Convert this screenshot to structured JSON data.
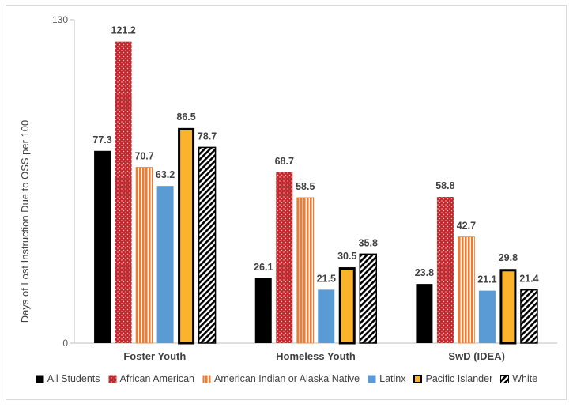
{
  "chart_data": {
    "type": "bar",
    "ylabel": "Days of Lost Instruction Due to OSS per 100",
    "ylim": [
      0,
      130
    ],
    "yticks": [
      "0",
      "130"
    ],
    "categories": [
      "Foster Youth",
      "Homeless Youth",
      "SwD (IDEA)"
    ],
    "series": [
      {
        "name": "All Students",
        "values": [
          77.3,
          26.1,
          23.8
        ],
        "labels": [
          "77.3",
          "26.1",
          "23.8"
        ],
        "color": "#000000",
        "pattern": "solid"
      },
      {
        "name": "African American",
        "values": [
          121.2,
          68.7,
          58.8
        ],
        "labels": [
          "121.2",
          "68.7",
          "58.8"
        ],
        "color": "#c0282d",
        "pattern": "dots"
      },
      {
        "name": "American Indian or Alaska Native",
        "values": [
          70.7,
          58.5,
          42.7
        ],
        "labels": [
          "70.7",
          "58.5",
          "42.7"
        ],
        "color": "#ed7d31",
        "pattern": "vertical-stripes"
      },
      {
        "name": "Latinx",
        "values": [
          63.2,
          21.5,
          21.1
        ],
        "labels": [
          "63.2",
          "21.5",
          "21.1"
        ],
        "color": "#5b9bd5",
        "pattern": "solid"
      },
      {
        "name": "Pacific Islander",
        "values": [
          86.5,
          30.5,
          29.8
        ],
        "labels": [
          "86.5",
          "30.5",
          "29.8"
        ],
        "color": "#fbb32b",
        "pattern": "solid-thick-border"
      },
      {
        "name": "White",
        "values": [
          78.7,
          35.8,
          21.4
        ],
        "labels": [
          "78.7",
          "35.8",
          "21.4"
        ],
        "color": "#000000",
        "pattern": "diagonal-hatch"
      }
    ],
    "grid": false,
    "legend_position": "bottom"
  }
}
